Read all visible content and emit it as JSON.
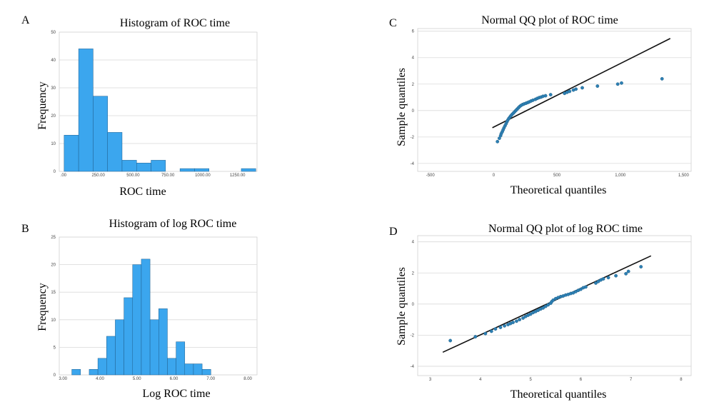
{
  "chart_data": [
    {
      "id": "A",
      "panel_label": "A",
      "type": "bar",
      "title": "Histogram of ROC time",
      "xlabel": "ROC time",
      "ylabel": "Frequency",
      "xlim": [
        -30,
        1390
      ],
      "ylim": [
        0,
        50
      ],
      "x_ticks": [
        0,
        250,
        500,
        750,
        1000,
        1250
      ],
      "x_tick_labels": [
        ".00",
        "250.00",
        "500.00",
        "750.00",
        "1000.00",
        "1250.00"
      ],
      "y_ticks": [
        0,
        10,
        20,
        30,
        40,
        50
      ],
      "y_tick_labels": [
        "0",
        "10",
        "20",
        "30",
        "40",
        "50"
      ],
      "bin_width": 104,
      "bins": [
        {
          "start": 5,
          "count": 13
        },
        {
          "start": 109,
          "count": 44
        },
        {
          "start": 213,
          "count": 27
        },
        {
          "start": 317,
          "count": 14
        },
        {
          "start": 421,
          "count": 4
        },
        {
          "start": 525,
          "count": 3
        },
        {
          "start": 629,
          "count": 4
        },
        {
          "start": 837,
          "count": 1
        },
        {
          "start": 941,
          "count": 1
        },
        {
          "start": 1277,
          "count": 1
        }
      ]
    },
    {
      "id": "B",
      "panel_label": "B",
      "type": "bar",
      "title": "Histogram of log ROC time",
      "xlabel": "Log ROC time",
      "ylabel": "Frequency",
      "xlim": [
        2.9,
        8.25
      ],
      "ylim": [
        0,
        25
      ],
      "x_ticks": [
        3,
        4,
        5,
        6,
        7,
        8
      ],
      "x_tick_labels": [
        "3.00",
        "4.00",
        "5.00",
        "6.00",
        "7.00",
        "8.00"
      ],
      "y_ticks": [
        0,
        5,
        10,
        15,
        20,
        25
      ],
      "y_tick_labels": [
        "0",
        "5",
        "10",
        "15",
        "20",
        "25"
      ],
      "bin_width": 0.235,
      "bins": [
        {
          "start": 3.24,
          "count": 1
        },
        {
          "start": 3.71,
          "count": 1
        },
        {
          "start": 3.945,
          "count": 3
        },
        {
          "start": 4.18,
          "count": 7
        },
        {
          "start": 4.415,
          "count": 10
        },
        {
          "start": 4.65,
          "count": 14
        },
        {
          "start": 4.885,
          "count": 20
        },
        {
          "start": 5.12,
          "count": 21
        },
        {
          "start": 5.355,
          "count": 10
        },
        {
          "start": 5.59,
          "count": 12
        },
        {
          "start": 5.825,
          "count": 3
        },
        {
          "start": 6.06,
          "count": 6
        },
        {
          "start": 6.295,
          "count": 2
        },
        {
          "start": 6.53,
          "count": 2
        },
        {
          "start": 6.765,
          "count": 1
        }
      ]
    },
    {
      "id": "C",
      "panel_label": "C",
      "type": "scatter",
      "title": "Normal QQ plot of ROC time",
      "xlabel": "Theoretical quantiles",
      "ylabel": "Sample quantiles",
      "xlim": [
        -600,
        1560
      ],
      "ylim": [
        -4.6,
        6.2
      ],
      "x_ticks": [
        -500,
        0,
        500,
        1000,
        1500
      ],
      "x_tick_labels": [
        "-500",
        "0",
        "500",
        "1,000",
        "1,500"
      ],
      "y_ticks": [
        -4,
        -2,
        0,
        2,
        4,
        6
      ],
      "y_tick_labels": [
        "-4",
        "-2",
        "0",
        "2",
        "4",
        "6"
      ],
      "reference_line": {
        "x": [
          -10,
          1395
        ],
        "y": [
          -1.3,
          5.45
        ]
      },
      "points": [
        [
          30,
          -2.35
        ],
        [
          45,
          -2.1
        ],
        [
          55,
          -1.9
        ],
        [
          60,
          -1.75
        ],
        [
          68,
          -1.6
        ],
        [
          75,
          -1.45
        ],
        [
          82,
          -1.3
        ],
        [
          90,
          -1.15
        ],
        [
          98,
          -1.0
        ],
        [
          105,
          -0.85
        ],
        [
          112,
          -0.72
        ],
        [
          120,
          -0.6
        ],
        [
          128,
          -0.5
        ],
        [
          136,
          -0.4
        ],
        [
          145,
          -0.3
        ],
        [
          155,
          -0.2
        ],
        [
          165,
          -0.1
        ],
        [
          175,
          0.0
        ],
        [
          185,
          0.1
        ],
        [
          195,
          0.2
        ],
        [
          205,
          0.3
        ],
        [
          215,
          0.38
        ],
        [
          228,
          0.45
        ],
        [
          240,
          0.5
        ],
        [
          255,
          0.55
        ],
        [
          268,
          0.6
        ],
        [
          280,
          0.65
        ],
        [
          295,
          0.72
        ],
        [
          310,
          0.78
        ],
        [
          330,
          0.85
        ],
        [
          345,
          0.92
        ],
        [
          360,
          0.98
        ],
        [
          375,
          1.02
        ],
        [
          390,
          1.08
        ],
        [
          410,
          1.12
        ],
        [
          450,
          1.2
        ],
        [
          560,
          1.3
        ],
        [
          580,
          1.38
        ],
        [
          600,
          1.45
        ],
        [
          630,
          1.55
        ],
        [
          650,
          1.62
        ],
        [
          700,
          1.72
        ],
        [
          820,
          1.85
        ],
        [
          980,
          2.0
        ],
        [
          1010,
          2.08
        ],
        [
          1330,
          2.4
        ]
      ]
    },
    {
      "id": "D",
      "panel_label": "D",
      "type": "scatter",
      "title": "Normal QQ plot of log ROC time",
      "xlabel": "Theoretical quantiles",
      "ylabel": "Sample quantiles",
      "xlim": [
        2.75,
        8.2
      ],
      "ylim": [
        -4.6,
        4.4
      ],
      "x_ticks": [
        3,
        4,
        5,
        6,
        7,
        8
      ],
      "x_tick_labels": [
        "3",
        "4",
        "5",
        "6",
        "7",
        "8"
      ],
      "y_ticks": [
        -4,
        -2,
        0,
        2,
        4
      ],
      "y_tick_labels": [
        "-4",
        "-2",
        "0",
        "2",
        "4"
      ],
      "reference_line": {
        "x": [
          3.25,
          7.4
        ],
        "y": [
          -3.1,
          3.1
        ]
      },
      "points": [
        [
          3.4,
          -2.35
        ],
        [
          3.9,
          -2.1
        ],
        [
          4.1,
          -1.9
        ],
        [
          4.22,
          -1.75
        ],
        [
          4.3,
          -1.6
        ],
        [
          4.4,
          -1.5
        ],
        [
          4.48,
          -1.4
        ],
        [
          4.55,
          -1.32
        ],
        [
          4.6,
          -1.25
        ],
        [
          4.65,
          -1.18
        ],
        [
          4.72,
          -1.1
        ],
        [
          4.78,
          -1.0
        ],
        [
          4.85,
          -0.9
        ],
        [
          4.9,
          -0.8
        ],
        [
          4.95,
          -0.72
        ],
        [
          5.0,
          -0.65
        ],
        [
          5.05,
          -0.55
        ],
        [
          5.1,
          -0.48
        ],
        [
          5.15,
          -0.4
        ],
        [
          5.2,
          -0.32
        ],
        [
          5.25,
          -0.25
        ],
        [
          5.3,
          -0.15
        ],
        [
          5.35,
          -0.05
        ],
        [
          5.4,
          0.05
        ],
        [
          5.42,
          0.15
        ],
        [
          5.45,
          0.25
        ],
        [
          5.5,
          0.35
        ],
        [
          5.55,
          0.42
        ],
        [
          5.6,
          0.48
        ],
        [
          5.65,
          0.52
        ],
        [
          5.7,
          0.58
        ],
        [
          5.75,
          0.62
        ],
        [
          5.8,
          0.68
        ],
        [
          5.85,
          0.72
        ],
        [
          5.9,
          0.8
        ],
        [
          5.95,
          0.88
        ],
        [
          6.0,
          0.95
        ],
        [
          6.05,
          1.05
        ],
        [
          6.1,
          1.1
        ],
        [
          6.3,
          1.35
        ],
        [
          6.35,
          1.45
        ],
        [
          6.4,
          1.55
        ],
        [
          6.45,
          1.62
        ],
        [
          6.55,
          1.7
        ],
        [
          6.7,
          1.82
        ],
        [
          6.9,
          1.95
        ],
        [
          6.95,
          2.1
        ],
        [
          7.2,
          2.4
        ]
      ]
    }
  ]
}
